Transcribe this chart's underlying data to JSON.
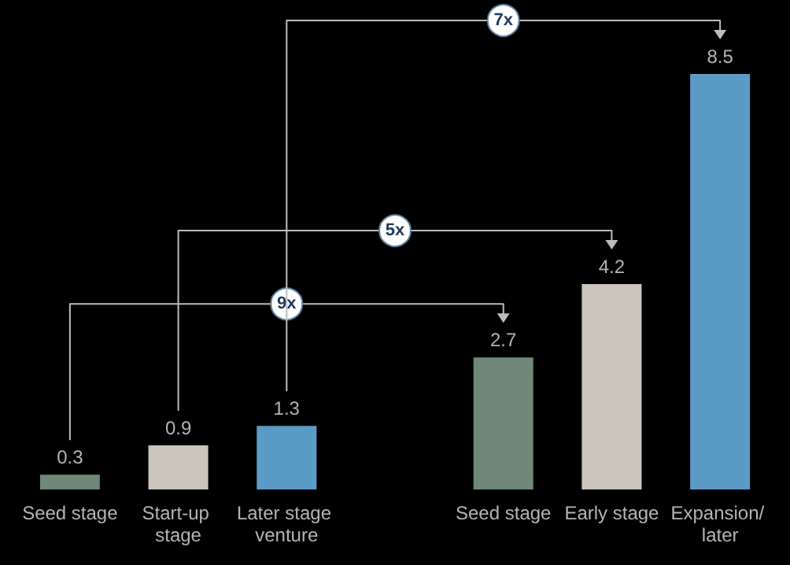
{
  "chart_data": {
    "type": "bar",
    "categories": [
      "Seed stage",
      "Start-up stage",
      "Later stage venture",
      null,
      "Seed stage",
      "Early stage",
      "Expansion/ later"
    ],
    "values": [
      0.3,
      0.9,
      1.3,
      null,
      2.7,
      4.2,
      8.5
    ],
    "colors": [
      "#6f8878",
      "#cbc5bd",
      "#5b9cc6",
      null,
      "#6f8878",
      "#cbc5bd",
      "#5b9cc6"
    ],
    "data_labels": true,
    "annotations": [
      "9x",
      "5x",
      "7x"
    ]
  }
}
